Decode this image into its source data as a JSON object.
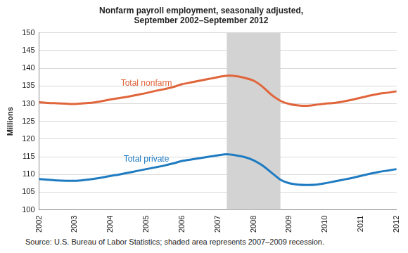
{
  "chart_data": {
    "type": "line",
    "title": [
      "Nonfarm payroll employment, seasonally adjusted,",
      "September 2002–September 2012"
    ],
    "y_label": "Millions",
    "source": "Source: U.S. Bureau of Labor Statistics; shaded area represents 2007–2009 recession.",
    "x": [
      2002,
      2002.25,
      2002.5,
      2002.75,
      2003,
      2003.25,
      2003.5,
      2003.75,
      2004,
      2004.25,
      2004.5,
      2004.75,
      2005,
      2005.25,
      2005.5,
      2005.75,
      2006,
      2006.25,
      2006.5,
      2006.75,
      2007,
      2007.25,
      2007.5,
      2007.75,
      2008,
      2008.25,
      2008.5,
      2008.75,
      2009,
      2009.25,
      2009.5,
      2009.75,
      2010,
      2010.25,
      2010.5,
      2010.75,
      2011,
      2011.25,
      2011.5,
      2011.75,
      2012
    ],
    "series": [
      {
        "name": "Total nonfarm",
        "color": "#e0653a",
        "values": [
          130.4,
          130.2,
          130.1,
          130.0,
          129.9,
          130.1,
          130.3,
          130.7,
          131.2,
          131.6,
          132.0,
          132.5,
          133.0,
          133.6,
          134.1,
          134.7,
          135.5,
          136.0,
          136.5,
          137.0,
          137.5,
          137.9,
          137.8,
          137.3,
          136.5,
          134.8,
          132.5,
          130.8,
          129.9,
          129.5,
          129.4,
          129.7,
          130.0,
          130.2,
          130.6,
          131.1,
          131.7,
          132.3,
          132.8,
          133.1,
          133.5
        ]
      },
      {
        "name": "Total private",
        "color": "#1f7bc1",
        "values": [
          108.7,
          108.5,
          108.3,
          108.2,
          108.2,
          108.4,
          108.7,
          109.1,
          109.6,
          110.0,
          110.5,
          111.0,
          111.5,
          112.0,
          112.5,
          113.1,
          113.8,
          114.2,
          114.6,
          115.0,
          115.4,
          115.7,
          115.4,
          114.9,
          114.0,
          112.5,
          110.5,
          108.5,
          107.5,
          107.1,
          107.0,
          107.1,
          107.5,
          108.0,
          108.5,
          109.0,
          109.6,
          110.2,
          110.7,
          111.1,
          111.5
        ]
      }
    ],
    "shaded_range": [
      2007.25,
      2008.75
    ],
    "shaded_color": "#d3d3d3",
    "xlim": [
      2002,
      2012
    ],
    "xticks": [
      2002,
      2003,
      2004,
      2005,
      2006,
      2007,
      2008,
      2009,
      2010,
      2011,
      2012
    ],
    "ylim": [
      100,
      150
    ],
    "yticks": [
      100,
      105,
      110,
      115,
      120,
      125,
      130,
      135,
      140,
      145,
      150
    ],
    "grid": true
  }
}
